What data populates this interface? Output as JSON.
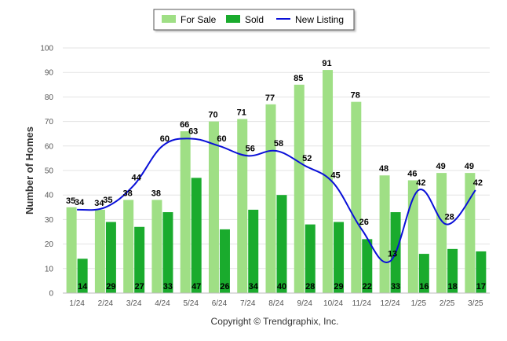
{
  "chart_data": {
    "type": "bar",
    "categories": [
      "1/24",
      "2/24",
      "3/24",
      "4/24",
      "5/24",
      "6/24",
      "7/24",
      "8/24",
      "9/24",
      "10/24",
      "11/24",
      "12/24",
      "1/25",
      "2/25",
      "3/25"
    ],
    "series": [
      {
        "name": "For Sale",
        "kind": "bar",
        "color": "#9fdf85",
        "values": [
          35,
          34,
          38,
          38,
          66,
          70,
          71,
          77,
          85,
          91,
          78,
          48,
          46,
          49,
          49
        ]
      },
      {
        "name": "Sold",
        "kind": "bar",
        "color": "#1aab2d",
        "values": [
          14,
          29,
          27,
          33,
          47,
          26,
          34,
          40,
          28,
          29,
          22,
          33,
          16,
          18,
          17
        ]
      },
      {
        "name": "New Listing",
        "kind": "line",
        "color": "#0a10d8",
        "values": [
          34,
          35,
          44,
          60,
          63,
          60,
          56,
          58,
          52,
          45,
          26,
          13,
          42,
          28,
          42
        ]
      }
    ],
    "ylabel": "Number of Homes",
    "xlabel": "",
    "ylim": [
      0,
      100
    ],
    "yticks": [
      0,
      10,
      20,
      30,
      40,
      50,
      60,
      70,
      80,
      90,
      100
    ],
    "grid": true,
    "legend_position": "top-center",
    "footer": "Copyright © Trendgraphix, Inc."
  }
}
